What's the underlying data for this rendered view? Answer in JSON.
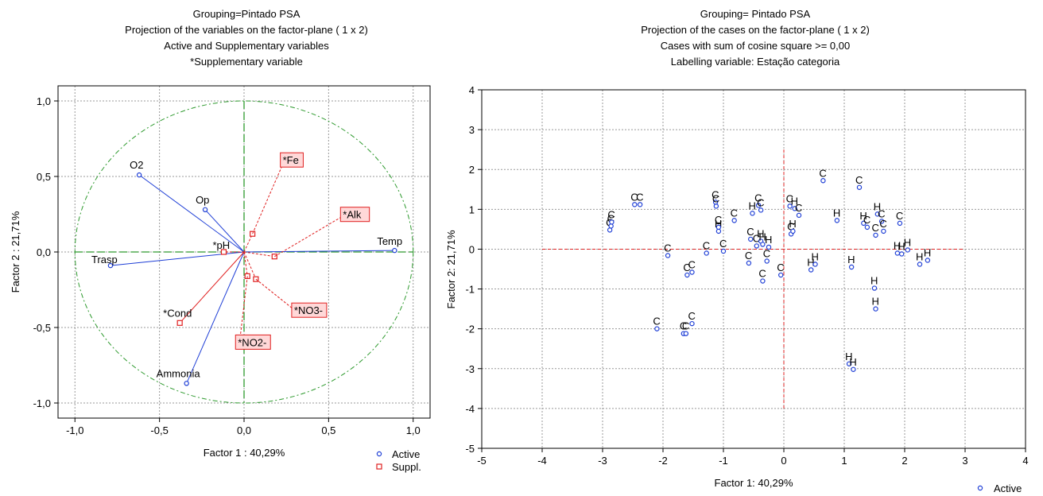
{
  "titles": {
    "left": [
      "Grouping=Pintado PSA",
      "Projection of the variables on the factor-plane (   1 x    2)",
      "Active and Supplementary variables",
      "*Supplementary variable"
    ],
    "right": [
      "Grouping= Pintado PSA",
      "Projection of the cases on the factor-plane (  1 x    2)",
      "Cases with sum of cosine square >=  0,00",
      "Labelling variable: Estação categoria"
    ]
  },
  "colors": {
    "active": "#1f3fd6",
    "suppl": "#e02020",
    "circle": "#2e9a2e",
    "zero_right": "#e02020",
    "grid": "#999999"
  },
  "chart_data": [
    {
      "type": "scatter",
      "name": "variables",
      "xlabel": "Factor 1 : 40,29%",
      "ylabel": "Factor 2 : 21,71%",
      "xlim": [
        -1.1,
        1.1
      ],
      "ylim": [
        -1.1,
        1.1
      ],
      "xticks": [
        -1.0,
        -0.5,
        0.0,
        0.5,
        1.0
      ],
      "yticks": [
        -1.0,
        -0.5,
        0.0,
        0.5,
        1.0
      ],
      "xtick_labels": [
        "-1,0",
        "-0,5",
        "0,0",
        "0,5",
        "1,0"
      ],
      "ytick_labels": [
        "-1,0",
        "-0,5",
        "0,0",
        "0,5",
        "1,0"
      ],
      "grid": true,
      "unit_circle": true,
      "legend": {
        "position": "bottom-right",
        "items": [
          "Active",
          "Suppl."
        ]
      },
      "active": [
        {
          "label": "O2",
          "x": -0.62,
          "y": 0.51
        },
        {
          "label": "Op",
          "x": -0.23,
          "y": 0.28
        },
        {
          "label": "Trasp",
          "x": -0.79,
          "y": -0.09
        },
        {
          "label": "Temp",
          "x": 0.89,
          "y": 0.01
        },
        {
          "label": "Ammonia",
          "x": -0.34,
          "y": -0.87
        }
      ],
      "suppl": [
        {
          "label": "*Fe",
          "x": 0.05,
          "y": 0.12
        },
        {
          "label": "*Alk",
          "x": 0.18,
          "y": -0.03
        },
        {
          "label": "*pH",
          "x": -0.12,
          "y": 0.0
        },
        {
          "label": "*NO3-",
          "x": 0.07,
          "y": -0.18
        },
        {
          "label": "*NO2-",
          "x": 0.02,
          "y": -0.16
        },
        {
          "label": "*Cond",
          "x": -0.38,
          "y": -0.47
        }
      ]
    },
    {
      "type": "scatter",
      "name": "cases",
      "xlabel": "Factor 1: 40,29%",
      "ylabel": "Factor 2: 21,71%",
      "xlim": [
        -5,
        4
      ],
      "ylim": [
        -5,
        4
      ],
      "xticks": [
        -5,
        -4,
        -3,
        -2,
        -1,
        0,
        1,
        2,
        3,
        4
      ],
      "yticks": [
        -5,
        -4,
        -3,
        -2,
        -1,
        0,
        1,
        2,
        3,
        4
      ],
      "grid": true,
      "legend": {
        "position": "bottom-right",
        "items": [
          "Active"
        ]
      },
      "points": [
        {
          "label": "C",
          "x": -2.88,
          "y": 0.48
        },
        {
          "label": "C",
          "x": -2.86,
          "y": 0.58
        },
        {
          "label": "C",
          "x": -2.85,
          "y": 0.68
        },
        {
          "label": "C",
          "x": -2.47,
          "y": 1.12
        },
        {
          "label": "C",
          "x": -2.38,
          "y": 1.12
        },
        {
          "label": "C",
          "x": -2.1,
          "y": -2.0
        },
        {
          "label": "C",
          "x": -1.92,
          "y": -0.16
        },
        {
          "label": "C",
          "x": -1.66,
          "y": -2.12
        },
        {
          "label": "C",
          "x": -1.62,
          "y": -2.12
        },
        {
          "label": "C",
          "x": -1.6,
          "y": -0.65
        },
        {
          "label": "C",
          "x": -1.52,
          "y": -1.87
        },
        {
          "label": "C",
          "x": -1.52,
          "y": -0.58
        },
        {
          "label": "C",
          "x": -1.28,
          "y": -0.1
        },
        {
          "label": "C",
          "x": -1.13,
          "y": 1.18
        },
        {
          "label": "C",
          "x": -1.12,
          "y": 1.08
        },
        {
          "label": "H",
          "x": -1.08,
          "y": 0.45
        },
        {
          "label": "C",
          "x": -1.08,
          "y": 0.55
        },
        {
          "label": "C",
          "x": -1.0,
          "y": -0.05
        },
        {
          "label": "C",
          "x": -0.82,
          "y": 0.72
        },
        {
          "label": "C",
          "x": -0.58,
          "y": -0.35
        },
        {
          "label": "C",
          "x": -0.55,
          "y": 0.25
        },
        {
          "label": "H",
          "x": -0.52,
          "y": 0.9
        },
        {
          "label": "C",
          "x": -0.45,
          "y": 0.08
        },
        {
          "label": "H",
          "x": -0.38,
          "y": 0.2
        },
        {
          "label": "C",
          "x": -0.42,
          "y": 1.1
        },
        {
          "label": "C",
          "x": -0.38,
          "y": 0.98
        },
        {
          "label": "H",
          "x": -0.35,
          "y": 0.12
        },
        {
          "label": "C",
          "x": -0.35,
          "y": -0.8
        },
        {
          "label": "H",
          "x": -0.25,
          "y": 0.05
        },
        {
          "label": "C",
          "x": -0.28,
          "y": -0.3
        },
        {
          "label": "C",
          "x": -0.05,
          "y": -0.65
        },
        {
          "label": "C",
          "x": 0.1,
          "y": 1.08
        },
        {
          "label": "C",
          "x": 0.12,
          "y": 0.38
        },
        {
          "label": "H",
          "x": 0.15,
          "y": 0.45
        },
        {
          "label": "H",
          "x": 0.18,
          "y": 1.02
        },
        {
          "label": "C",
          "x": 0.25,
          "y": 0.85
        },
        {
          "label": "H",
          "x": 0.45,
          "y": -0.52
        },
        {
          "label": "H",
          "x": 0.52,
          "y": -0.38
        },
        {
          "label": "C",
          "x": 0.65,
          "y": 1.72
        },
        {
          "label": "H",
          "x": 0.88,
          "y": 0.72
        },
        {
          "label": "H",
          "x": 1.12,
          "y": -0.45
        },
        {
          "label": "H",
          "x": 1.08,
          "y": -2.88
        },
        {
          "label": "H",
          "x": 1.15,
          "y": -3.02
        },
        {
          "label": "C",
          "x": 1.25,
          "y": 1.55
        },
        {
          "label": "H",
          "x": 1.32,
          "y": 0.65
        },
        {
          "label": "C",
          "x": 1.38,
          "y": 0.55
        },
        {
          "label": "H",
          "x": 1.5,
          "y": -0.98
        },
        {
          "label": "H",
          "x": 1.52,
          "y": -1.5
        },
        {
          "label": "C",
          "x": 1.52,
          "y": 0.35
        },
        {
          "label": "H",
          "x": 1.55,
          "y": 0.88
        },
        {
          "label": "C",
          "x": 1.62,
          "y": 0.7
        },
        {
          "label": "C",
          "x": 1.65,
          "y": 0.45
        },
        {
          "label": "H",
          "x": 1.88,
          "y": -0.1
        },
        {
          "label": "C",
          "x": 1.92,
          "y": 0.65
        },
        {
          "label": "H",
          "x": 1.95,
          "y": -0.12
        },
        {
          "label": "H",
          "x": 2.05,
          "y": -0.02
        },
        {
          "label": "H",
          "x": 2.25,
          "y": -0.38
        },
        {
          "label": "H",
          "x": 2.38,
          "y": -0.28
        }
      ]
    }
  ]
}
